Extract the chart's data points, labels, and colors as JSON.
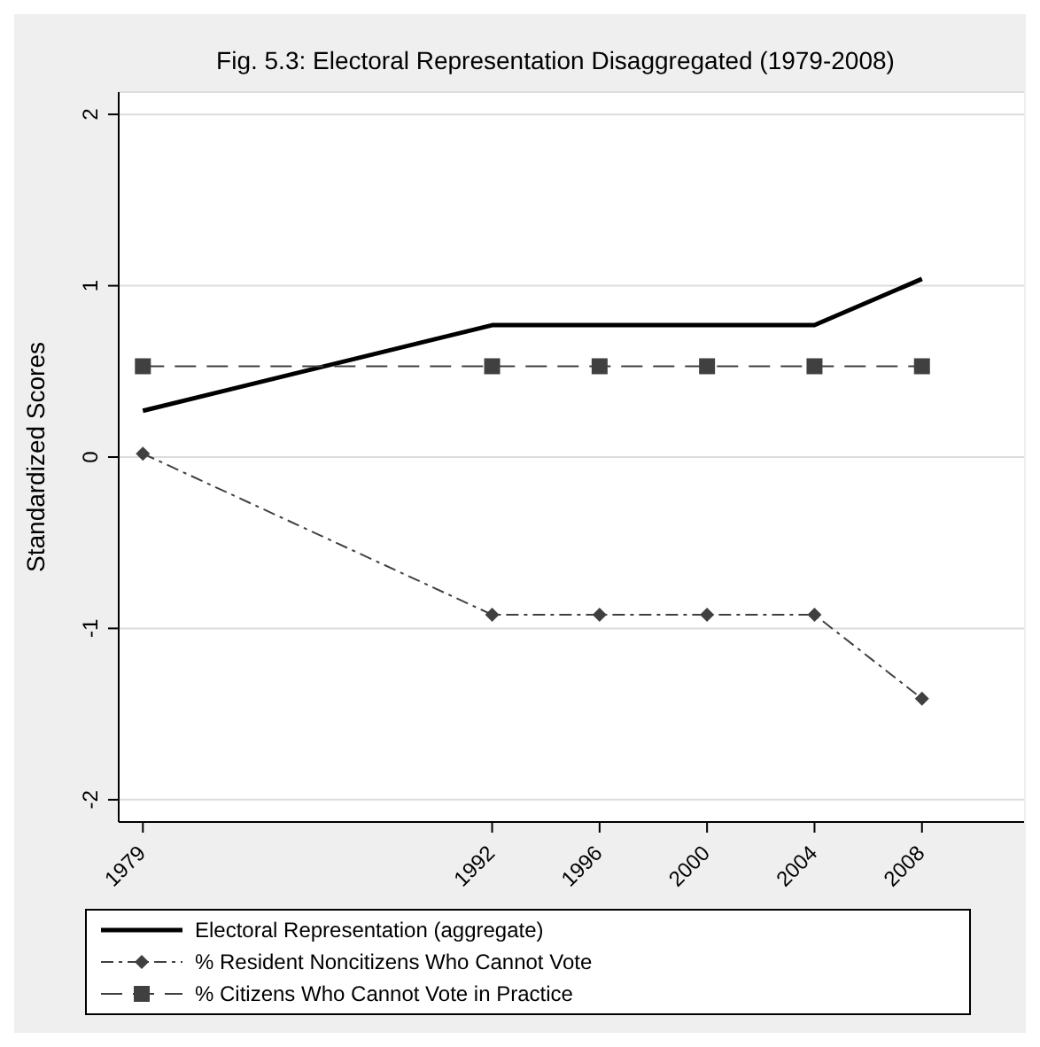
{
  "chart_data": {
    "type": "line",
    "title": "Fig. 5.3: Electoral Representation Disaggregated (1979-2008)",
    "ylabel": "Standardized Scores",
    "x": [
      1979,
      1992,
      1996,
      2000,
      2004,
      2008
    ],
    "xlim": [
      1978.1,
      2011.8
    ],
    "xticks": [
      1979,
      1992,
      1996,
      2000,
      2004,
      2008
    ],
    "ylim": [
      -2.13,
      2.13
    ],
    "yticks": [
      -2,
      -1,
      0,
      1,
      2
    ],
    "grid": "y",
    "legend": "bottom",
    "series": [
      {
        "name": "Electoral Representation (aggregate)",
        "color": "#000000",
        "values": [
          0.27,
          0.77,
          0.77,
          0.77,
          0.77,
          1.04
        ],
        "line_style": "solid",
        "marker": "none"
      },
      {
        "name": "% Resident Noncitizens Who Cannot Vote",
        "color": "#404040",
        "values": [
          0.02,
          -0.92,
          -0.92,
          -0.92,
          -0.92,
          -1.41
        ],
        "line_style": "dashdot",
        "marker": "diamond"
      },
      {
        "name": "% Citizens Who Cannot Vote in Practice",
        "color": "#404040",
        "values": [
          0.53,
          0.53,
          0.53,
          0.53,
          0.53,
          0.53
        ],
        "line_style": "dashed",
        "marker": "square"
      }
    ]
  }
}
